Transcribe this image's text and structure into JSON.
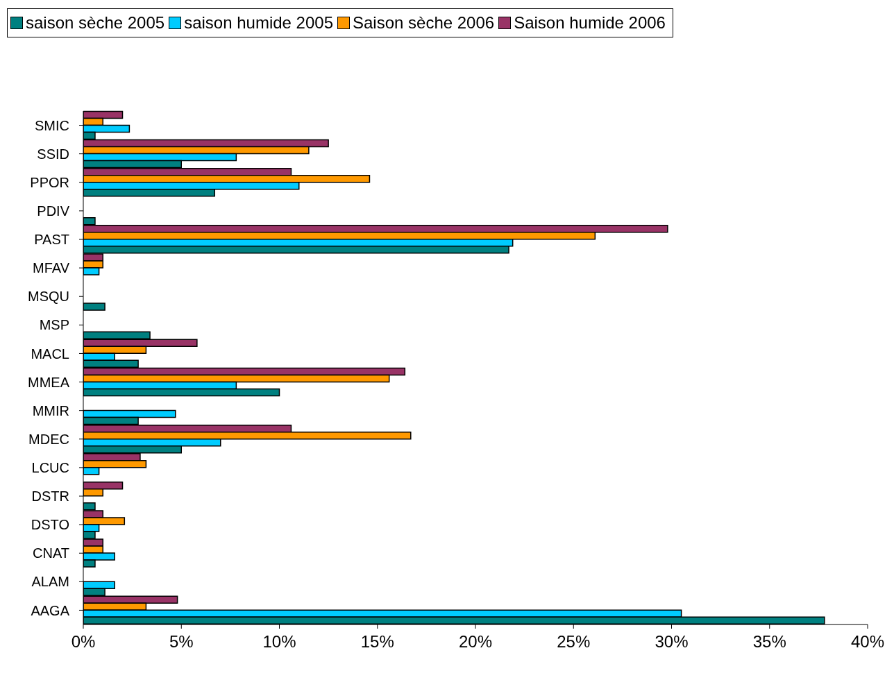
{
  "chart_data": {
    "type": "bar",
    "orientation": "horizontal",
    "categories": [
      "SMIC",
      "SSID",
      "PPOR",
      "PDIV",
      "PAST",
      "MFAV",
      "MSQU",
      "MSP",
      "MACL",
      "MMEA",
      "MMIR",
      "MDEC",
      "LCUC",
      "DSTR",
      "DSTO",
      "CNAT",
      "ALAM",
      "AAGA"
    ],
    "series": [
      {
        "name": "saison sèche 2005",
        "color": "#008080",
        "values": [
          0.6,
          5.0,
          6.7,
          0.6,
          21.7,
          null,
          1.1,
          3.4,
          2.8,
          10.0,
          2.8,
          5.0,
          null,
          0.6,
          0.6,
          0.6,
          1.1,
          37.8
        ]
      },
      {
        "name": "saison humide 2005",
        "color": "#00ccff",
        "values": [
          2.35,
          7.8,
          11.0,
          null,
          21.9,
          0.8,
          null,
          null,
          1.6,
          7.8,
          4.7,
          7.0,
          0.8,
          null,
          0.8,
          1.6,
          1.6,
          30.5
        ]
      },
      {
        "name": "Saison sèche 2006",
        "color": "#ff9900",
        "values": [
          1.0,
          11.5,
          14.6,
          null,
          26.1,
          1.0,
          null,
          null,
          3.2,
          15.6,
          null,
          16.7,
          3.2,
          1.0,
          2.1,
          1.0,
          null,
          3.2
        ]
      },
      {
        "name": "Saison humide 2006",
        "color": "#993366",
        "values": [
          2.0,
          12.5,
          10.6,
          null,
          29.8,
          1.0,
          null,
          null,
          5.8,
          16.4,
          null,
          10.6,
          2.9,
          2.0,
          1.0,
          1.0,
          null,
          4.8
        ]
      }
    ],
    "xlim": [
      0,
      40
    ],
    "xticks": [
      {
        "value": 0,
        "label": "0%"
      },
      {
        "value": 5,
        "label": "5%"
      },
      {
        "value": 10,
        "label": "10%"
      },
      {
        "value": 15,
        "label": "15%"
      },
      {
        "value": 20,
        "label": "20%"
      },
      {
        "value": 25,
        "label": "25%"
      },
      {
        "value": 30,
        "label": "30%"
      },
      {
        "value": 35,
        "label": "35%"
      },
      {
        "value": 40,
        "label": "40%"
      }
    ],
    "grid": false,
    "legend": "top left"
  }
}
